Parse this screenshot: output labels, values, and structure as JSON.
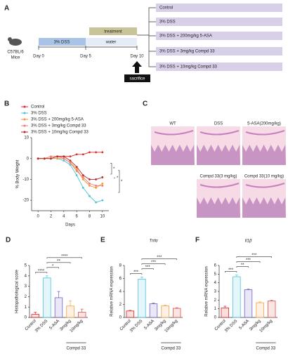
{
  "panel_a": {
    "label": "A",
    "mouse": [
      "C57BL/6",
      "Mice"
    ],
    "phase_dss": "3% DSS",
    "phase_water": "water",
    "phase_treatment": "treatment",
    "days": [
      "Day 0",
      "Day 5",
      "Day 10"
    ],
    "endpoint": "sacrifice",
    "groups": [
      "Control",
      "3% DSS",
      "3% DSS + 200mg/kg 5-ASA",
      "3% DSS + 3mg/kg Compd 33",
      "3% DSS + 10mg/kg Compd 33"
    ]
  },
  "panel_c": {
    "label": "C",
    "images": [
      "WT",
      "DSS",
      "5-ASA(200mg/kg)",
      "Compd 33(3 mg/kg)",
      "Compd 33(10 mg/kg)"
    ]
  },
  "chart_data": [
    {
      "panel": "B",
      "type": "line",
      "x_label": "Days",
      "y_label": "% Body Weight",
      "x": [
        0,
        1,
        2,
        3,
        4,
        5,
        6,
        7,
        8,
        9,
        10
      ],
      "series": [
        {
          "name": "Control",
          "color": "#e02828",
          "values": [
            0,
            0,
            0,
            1,
            1,
            1,
            2,
            2,
            3,
            3,
            3
          ]
        },
        {
          "name": "3% DSS",
          "color": "#4cc3d9",
          "values": [
            0,
            0,
            0,
            0,
            -1,
            -3,
            -8,
            -14,
            -18,
            -21,
            -20
          ]
        },
        {
          "name": "3% DSS + 200mg/kg 5-ASA",
          "color": "#f5963a",
          "values": [
            0,
            0,
            0,
            0,
            0,
            -2,
            -5,
            -10,
            -13,
            -14,
            -12
          ]
        },
        {
          "name": "3% DSS + 3mg/kg Compd 33",
          "color": "#f07a6a",
          "values": [
            0,
            0,
            1,
            1,
            0,
            -2,
            -6,
            -9,
            -12,
            -13,
            -13
          ]
        },
        {
          "name": "3% DSS + 10mg/kg Compd 33",
          "color": "#b82828",
          "values": [
            0,
            0,
            0,
            1,
            1,
            -1,
            -4,
            -8,
            -10,
            -10,
            -9
          ]
        }
      ],
      "xlim": [
        -1,
        11
      ],
      "xticks": [
        0,
        2,
        4,
        6,
        8,
        10
      ],
      "ylim": [
        -25,
        10
      ],
      "yticks": [
        -20,
        -10,
        0,
        10
      ],
      "annotations": [
        "*",
        "*",
        "*"
      ]
    },
    {
      "panel": "D",
      "type": "bar",
      "y_label": "Histopathological score",
      "categories": [
        "Control",
        "3% DSS",
        "5-ASA",
        "3mg/kg",
        "10mg/kg"
      ],
      "group_label": "Compd 33",
      "values": [
        0.3,
        3.8,
        1.9,
        1.1,
        0.5
      ],
      "errors": [
        0.2,
        0.2,
        0.6,
        0.5,
        0.3
      ],
      "colors": [
        "#e02828",
        "#4cc3d9",
        "#7060c0",
        "#f5a040",
        "#e05050"
      ],
      "ylim": [
        0,
        5
      ],
      "yticks": [
        0,
        1,
        2,
        3,
        4,
        5
      ],
      "significance": [
        "****",
        "*",
        "**",
        "****"
      ]
    },
    {
      "panel": "E",
      "type": "bar",
      "title": "Tnfα",
      "y_label": "Relative mRNA expression",
      "categories": [
        "Control",
        "3% DSS",
        "5-ASA",
        "3mg/kg",
        "10mg/kg"
      ],
      "group_label": "Compd 33",
      "values": [
        1.0,
        5.9,
        2.1,
        1.8,
        1.4
      ],
      "errors": [
        0.1,
        0.3,
        0.1,
        0.1,
        0.1
      ],
      "colors": [
        "#e02828",
        "#4cc3d9",
        "#7060c0",
        "#f5a040",
        "#e05050"
      ],
      "ylim": [
        0,
        8
      ],
      "yticks": [
        0,
        2,
        4,
        6,
        8
      ],
      "significance": [
        "***",
        "***",
        "***",
        "***"
      ]
    },
    {
      "panel": "F",
      "type": "bar",
      "title": "Il1β",
      "y_label": "Relative mRNA expression",
      "categories": [
        "Control",
        "3% DSS",
        "5-ASA",
        "3mg/kg",
        "10mg/kg"
      ],
      "group_label": "Compd 33",
      "values": [
        1.1,
        4.7,
        3.2,
        1.7,
        1.9
      ],
      "errors": [
        0.2,
        0.2,
        0.1,
        0.1,
        0.1
      ],
      "colors": [
        "#e02828",
        "#4cc3d9",
        "#7060c0",
        "#f5a040",
        "#e05050"
      ],
      "ylim": [
        0,
        6
      ],
      "yticks": [
        0,
        1,
        2,
        3,
        4,
        5,
        6
      ],
      "significance": [
        "***",
        "**",
        "***",
        "***"
      ]
    }
  ]
}
